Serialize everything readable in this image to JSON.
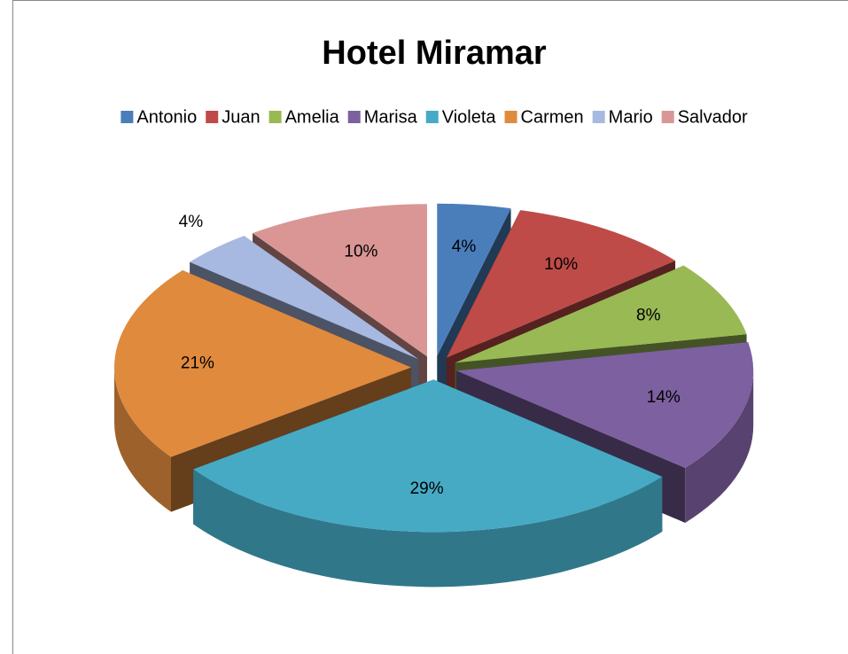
{
  "chart_data": {
    "type": "pie3d",
    "title": "Hotel Miramar",
    "categories": [
      "Antonio",
      "Juan",
      "Amelia",
      "Marisa",
      "Violeta",
      "Carmen",
      "Mario",
      "Salvador"
    ],
    "values": [
      4,
      10,
      8,
      14,
      29,
      21,
      4,
      10
    ],
    "value_labels": [
      "4%",
      "10%",
      "8%",
      "14%",
      "29%",
      "21%",
      "4%",
      "10%"
    ],
    "colors": [
      "#4a7ebb",
      "#be4b48",
      "#98b954",
      "#7d60a0",
      "#46aac5",
      "#e08a3e",
      "#a7b9e0",
      "#d99694"
    ],
    "legend": "top"
  }
}
